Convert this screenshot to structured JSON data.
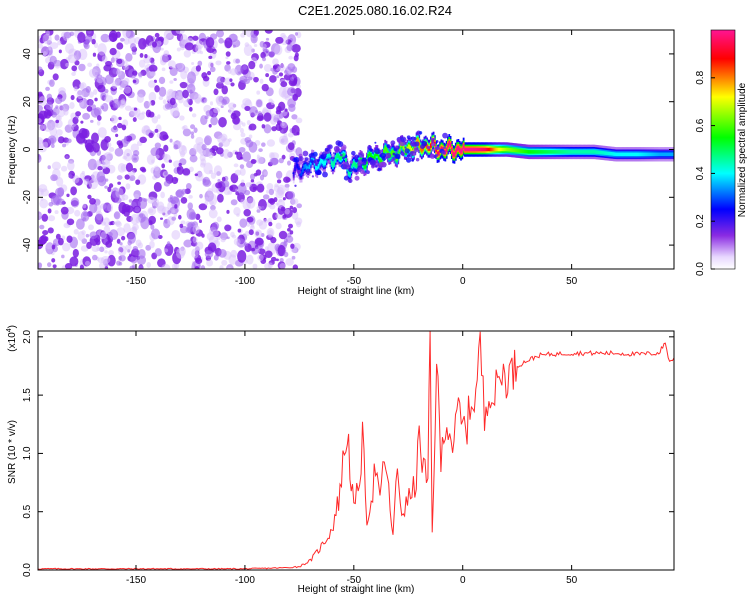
{
  "title": "C2E1.2025.080.16.02.R24",
  "chart_data": [
    {
      "type": "heatmap",
      "name": "spectrogram",
      "xlabel": "Height of straight line (km)",
      "ylabel": "Frequency (Hz)",
      "xlim": [
        -195,
        97
      ],
      "ylim": [
        -50,
        50
      ],
      "xticks": [
        -150,
        -100,
        -50,
        0,
        50
      ],
      "yticks": [
        -40,
        -20,
        0,
        20,
        40
      ],
      "colorbar": {
        "label": "Normalized spectral amplitude",
        "range": [
          0,
          1
        ],
        "ticks": [
          0.0,
          0.2,
          0.4,
          0.6,
          0.8
        ],
        "tick_labels": [
          "0.0",
          "0.2",
          "0.4",
          "0.6",
          "0.8"
        ],
        "colormap": [
          "#ffffff",
          "#8a2be2",
          "#0000ff",
          "#00ffff",
          "#00ff00",
          "#ffff00",
          "#ff0000",
          "#ff1493"
        ]
      },
      "noise_region_x": [
        -195,
        -75
      ],
      "signal_ridge": {
        "x": [
          -78,
          -72,
          -68,
          -64,
          -60,
          -56,
          -52,
          -48,
          -44,
          -40,
          -36,
          -32,
          -28,
          -24,
          -20,
          -16,
          -12,
          -8,
          -4,
          0,
          5,
          10,
          15,
          20,
          30,
          40,
          50,
          60,
          70,
          80,
          90,
          97
        ],
        "freq": [
          -10,
          -7,
          -6,
          -5,
          -4,
          -3,
          -8,
          -6,
          -4,
          -3,
          -2,
          -2,
          0,
          1,
          1,
          2,
          0,
          0,
          0,
          0,
          0,
          0,
          0,
          0,
          -1,
          -1,
          -1,
          -1,
          -2,
          -2,
          -2,
          -2
        ],
        "amplitude": [
          0.2,
          0.35,
          0.4,
          0.4,
          0.45,
          0.5,
          0.45,
          0.5,
          0.55,
          0.55,
          0.6,
          0.6,
          0.65,
          0.7,
          0.8,
          0.85,
          0.95,
          0.98,
          0.99,
          1.0,
          0.99,
          0.95,
          0.75,
          0.65,
          0.55,
          0.5,
          0.45,
          0.45,
          0.4,
          0.4,
          0.35,
          0.35
        ]
      }
    },
    {
      "type": "line",
      "name": "snr",
      "xlabel": "Height of straight line (km)",
      "ylabel": "SNR (10 * v/v)",
      "y_multiplier": "(x10",
      "y_multiplier_exp": "4",
      "xlim": [
        -195,
        97
      ],
      "ylim": [
        0,
        2.05
      ],
      "xticks": [
        -150,
        -100,
        -50,
        0,
        50
      ],
      "yticks": [
        0.0,
        0.5,
        1.0,
        1.5,
        2.0
      ],
      "ytick_labels": [
        "0.0",
        "0.5",
        "1.0",
        "1.5",
        "2.0"
      ],
      "color": "#ff2a2a",
      "x": [
        -195,
        -150,
        -100,
        -80,
        -75,
        -70,
        -65,
        -60,
        -57,
        -55,
        -53,
        -50,
        -48,
        -46,
        -44,
        -42,
        -40,
        -38,
        -36,
        -34,
        -32,
        -30,
        -28,
        -26,
        -24,
        -22,
        -20,
        -18,
        -16,
        -15,
        -14,
        -12,
        -10,
        -8,
        -6,
        -4,
        -2,
        0,
        2,
        4,
        6,
        8,
        10,
        12,
        14,
        16,
        18,
        20,
        22,
        25,
        30,
        35,
        40,
        50,
        60,
        70,
        80,
        90,
        93,
        95,
        97
      ],
      "y": [
        0.01,
        0.01,
        0.01,
        0.02,
        0.03,
        0.08,
        0.2,
        0.35,
        0.6,
        0.9,
        1.2,
        0.5,
        0.7,
        1.1,
        0.45,
        0.6,
        0.9,
        0.55,
        1.0,
        0.65,
        0.3,
        0.85,
        0.5,
        0.55,
        0.65,
        0.7,
        1.1,
        0.9,
        0.7,
        2.05,
        0.3,
        1.8,
        0.9,
        1.3,
        1.2,
        1.05,
        1.4,
        1.2,
        1.25,
        1.45,
        1.5,
        1.95,
        1.3,
        1.6,
        1.45,
        1.6,
        1.7,
        1.65,
        1.7,
        1.75,
        1.8,
        1.84,
        1.85,
        1.86,
        1.86,
        1.86,
        1.85,
        1.86,
        1.95,
        1.78,
        1.82
      ]
    }
  ]
}
